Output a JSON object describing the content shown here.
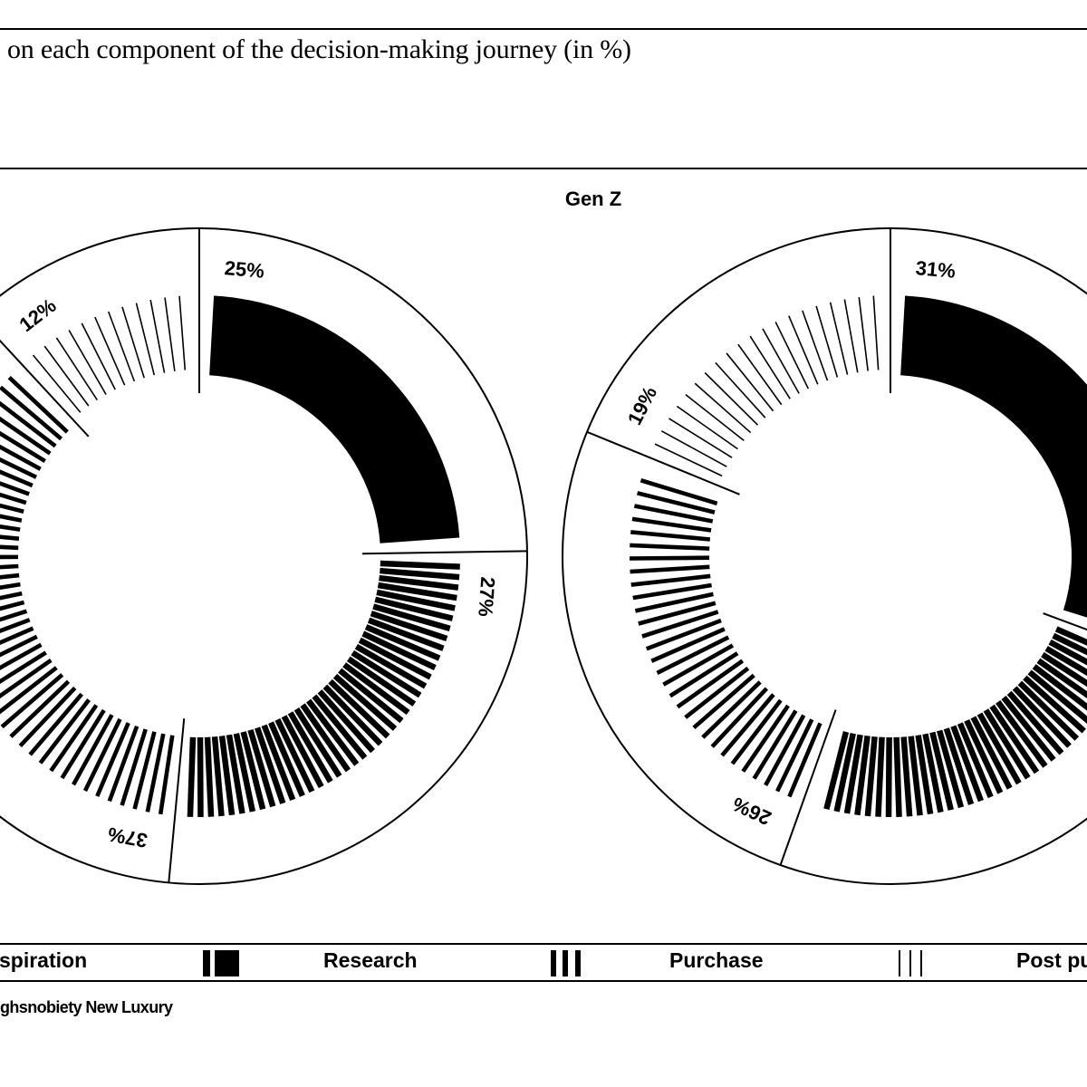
{
  "title": "on each component of the decision-making journey (in %)",
  "source": "ghsnobiety New Luxury",
  "chart_data": {
    "type": "pie",
    "subtitle": "Gen Z",
    "categories": [
      "Inspiration",
      "Research",
      "Purchase",
      "Post purchase"
    ],
    "legend_labels": [
      "spiration",
      "Research",
      "Purchase",
      "Post pu"
    ],
    "legend_placement": "bottom",
    "series": [
      {
        "values": [
          25,
          27,
          37,
          12
        ],
        "labels": [
          "25%",
          "27%",
          "37%",
          "12%"
        ]
      },
      {
        "values": [
          31,
          25,
          26,
          19
        ],
        "labels": [
          "31%",
          "",
          "26%",
          "19%"
        ]
      }
    ]
  }
}
